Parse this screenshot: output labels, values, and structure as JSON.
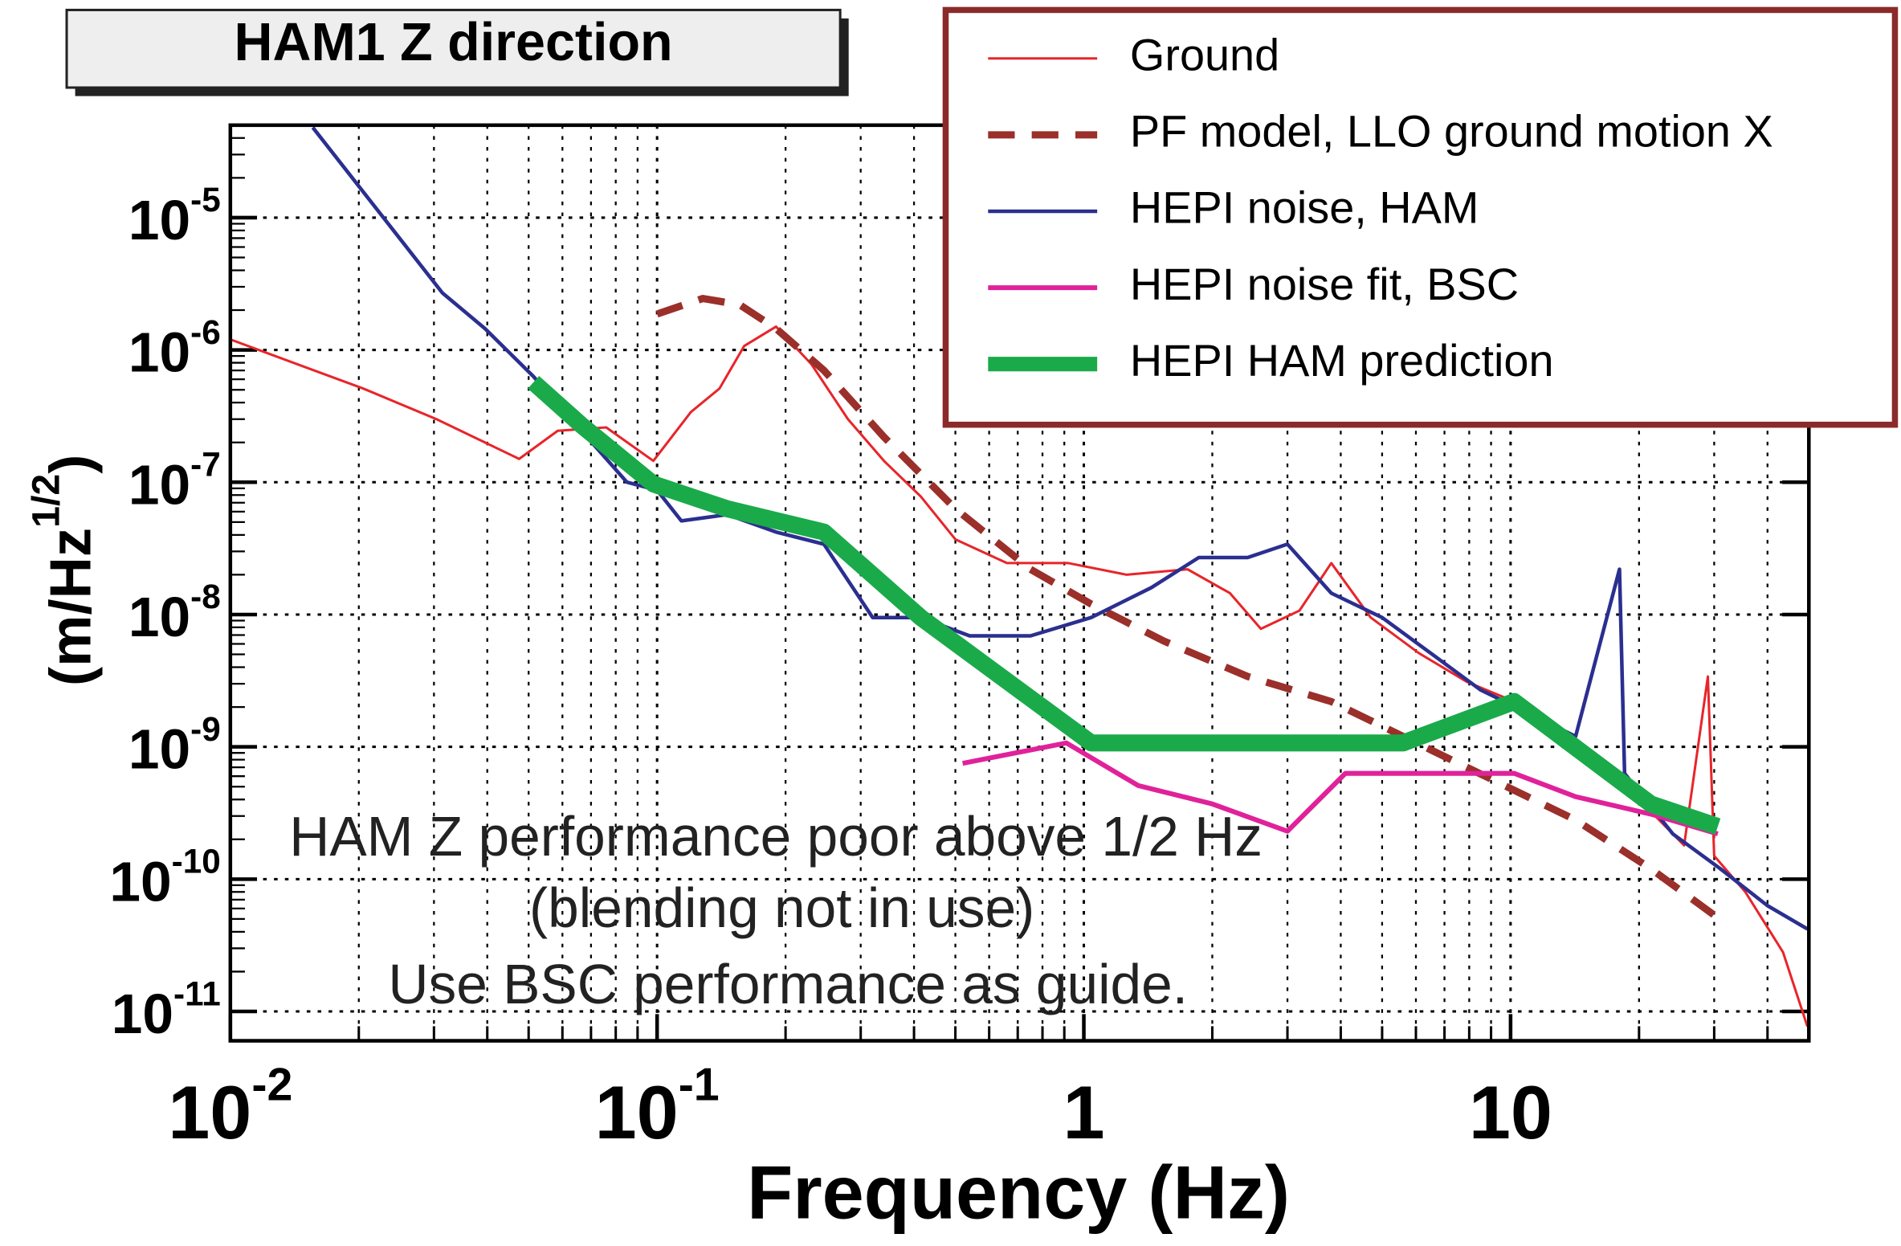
{
  "chart_data": {
    "type": "line",
    "title": "HAM1 Z direction",
    "x_label": "Frequency (Hz)",
    "y_label": {
      "text": "(m/Hz",
      "superscript": "1/2",
      "suffix": ")"
    },
    "log_x": true,
    "log_y": true,
    "grid": true,
    "legend": "top-right",
    "xlim": [
      0.01,
      50
    ],
    "ylim": [
      6e-12,
      5e-05
    ],
    "xticks": [
      {
        "value": 0.01,
        "label": "10",
        "exponent": "-2"
      },
      {
        "value": 0.1,
        "label": "10",
        "exponent": "-1"
      },
      1,
      10
    ],
    "yticks": [
      {
        "value": 1e-11,
        "label": "10",
        "exponent": "-11"
      },
      {
        "value": 1e-10,
        "label": "10",
        "exponent": "-10"
      },
      {
        "value": 1e-09,
        "label": "10",
        "exponent": "-9"
      },
      {
        "value": 1e-08,
        "label": "10",
        "exponent": "-8"
      },
      {
        "value": 1e-07,
        "label": "10",
        "exponent": "-7"
      },
      {
        "value": 1e-06,
        "label": "10",
        "exponent": "-6"
      },
      {
        "value": 1e-05,
        "label": "10",
        "exponent": "-5"
      }
    ],
    "annotations": [
      "HAM Z performance poor above 1/2 Hz",
      "(blending not in use)",
      "Use BSC performance as guide."
    ],
    "series": [
      {
        "name": "Ground",
        "color": "#e8252a",
        "linestyle": "solid",
        "x": [
          0.01,
          0.0205,
          0.0304,
          0.0395,
          0.0475,
          0.0585,
          0.076,
          0.098,
          0.12,
          0.14,
          0.16,
          0.19,
          0.23,
          0.28,
          0.34,
          0.415,
          0.5,
          0.66,
          0.92,
          1.26,
          1.75,
          2.2,
          2.6,
          3.2,
          3.8,
          4.7,
          6.1,
          7.9,
          10.2,
          14.2,
          19.7,
          25.5,
          29,
          30,
          35.5,
          43.5,
          49.6
        ],
        "values": [
          1.2e-06,
          5.1e-07,
          3e-07,
          2e-07,
          1.5e-07,
          2.45e-07,
          2.6e-07,
          1.45e-07,
          3.4e-07,
          5.1e-07,
          1.07e-06,
          1.5e-06,
          7.8e-07,
          3e-07,
          1.45e-07,
          7.8e-08,
          3.7e-08,
          2.45e-08,
          2.45e-08,
          2e-08,
          2.2e-08,
          1.45e-08,
          7.8e-09,
          1.07e-08,
          2.45e-08,
          9.5e-09,
          5.1e-09,
          3.1e-09,
          2.2e-09,
          9.7e-10,
          4.2e-10,
          1.8e-10,
          3.4e-09,
          1.5e-10,
          8e-11,
          2.8e-11,
          7.7e-12
        ]
      },
      {
        "name": "PF model, LLO ground motion X",
        "color": "#9b2f2a",
        "linestyle": "dashed",
        "x": [
          0.1,
          0.128,
          0.156,
          0.19,
          0.246,
          0.34,
          0.5,
          0.75,
          1.04,
          1.54,
          2.42,
          3.8,
          5.6,
          9,
          14.2,
          21.3,
          30.6
        ],
        "values": [
          1.87e-06,
          2.45e-06,
          2.2e-06,
          1.45e-06,
          7e-07,
          2.2e-07,
          6.3e-08,
          2.2e-08,
          1.2e-08,
          6.3e-09,
          3.4e-09,
          2.2e-09,
          1.2e-09,
          5.7e-10,
          2.8e-10,
          1.2e-10,
          5.1e-11
        ]
      },
      {
        "name": "HEPI noise, HAM",
        "color": "#2b2f8f",
        "linestyle": "solid",
        "x": [
          0.0156,
          0.0314,
          0.0395,
          0.0513,
          0.0665,
          0.085,
          0.1,
          0.114,
          0.146,
          0.19,
          0.246,
          0.32,
          0.415,
          0.54,
          0.75,
          1.04,
          1.44,
          1.86,
          2.42,
          3.0,
          3.8,
          5.0,
          6.5,
          8.5,
          11,
          14.2,
          18,
          18.5,
          24,
          31,
          40,
          49.6
        ],
        "values": [
          4.8e-05,
          2.7e-06,
          1.45e-06,
          6.3e-07,
          2.45e-07,
          1e-07,
          8.7e-08,
          5.1e-08,
          5.7e-08,
          4.2e-08,
          3.4e-08,
          9.5e-09,
          9.5e-09,
          6.9e-09,
          6.9e-09,
          9.5e-09,
          1.6e-08,
          2.7e-08,
          2.7e-08,
          3.4e-08,
          1.45e-08,
          9.5e-09,
          5.1e-09,
          2.7e-09,
          1.8e-09,
          1.2e-09,
          2.2e-08,
          6.3e-10,
          2.2e-10,
          1.2e-10,
          6.3e-11,
          4.2e-11
        ]
      },
      {
        "name": "HEPI noise fit, BSC",
        "color": "#e0229a",
        "linestyle": "solid",
        "x": [
          0.52,
          0.91,
          1.34,
          2.0,
          3.0,
          4.1,
          7.9,
          10.2,
          14.2,
          21.3,
          30.6
        ],
        "values": [
          7.5e-10,
          1.07e-09,
          5.1e-10,
          3.7e-10,
          2.3e-10,
          6.3e-10,
          6.3e-10,
          6.3e-10,
          4.2e-10,
          3.1e-10,
          2.2e-10
        ]
      },
      {
        "name": "HEPI HAM prediction",
        "color": "#1aaa4a",
        "linestyle": "solid",
        "x": [
          0.0513,
          0.0665,
          0.098,
          0.146,
          0.246,
          0.415,
          1.04,
          5.6,
          10.2,
          21.3,
          30.6
        ],
        "values": [
          5.7e-07,
          2.7e-07,
          9.7e-08,
          6.3e-08,
          4.2e-08,
          9.5e-09,
          1.07e-09,
          1.07e-09,
          2.2e-09,
          3.7e-10,
          2.5e-10
        ]
      }
    ]
  }
}
